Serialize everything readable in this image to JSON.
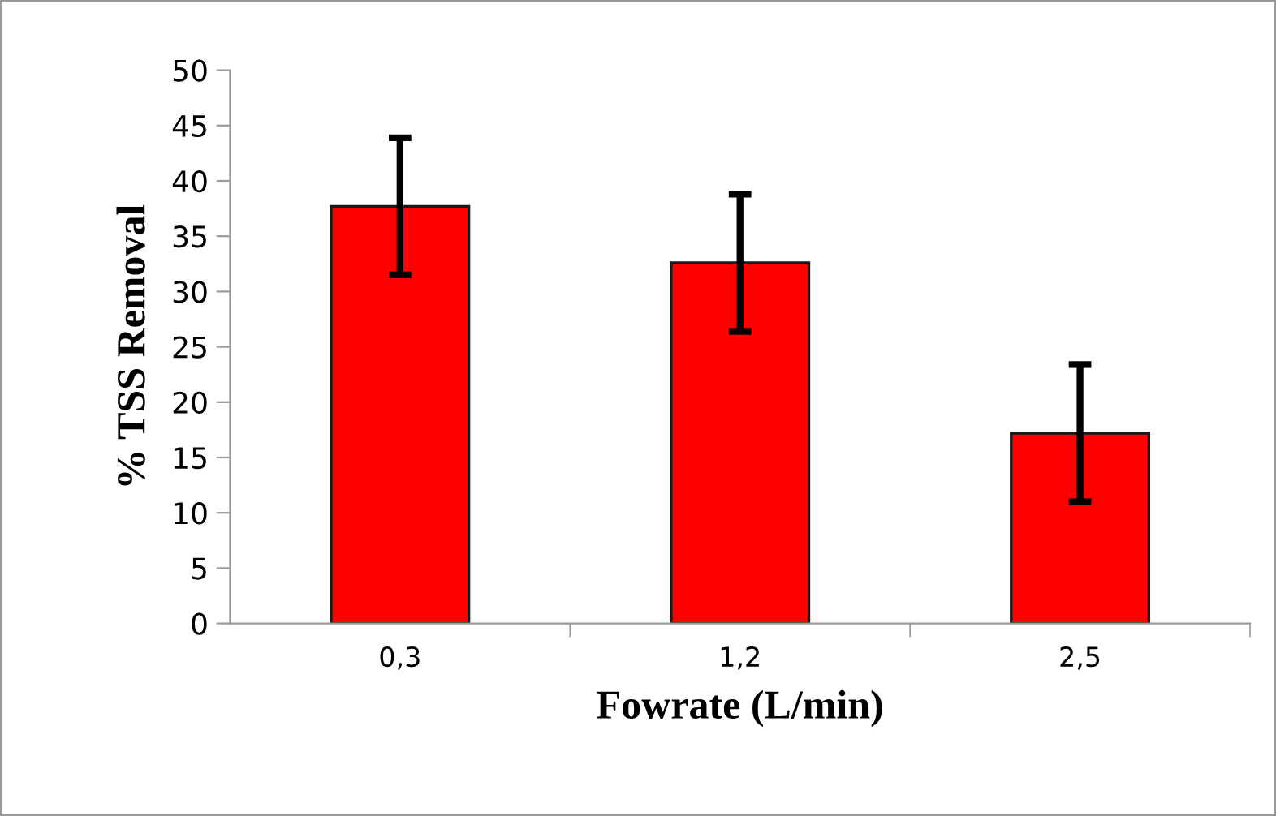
{
  "chart_data": {
    "type": "bar",
    "xlabel": "Fowrate (L/min)",
    "ylabel": "% TSS Removal",
    "categories": [
      "0,3",
      "1,2",
      "2,5"
    ],
    "values": [
      37.7,
      32.6,
      17.2
    ],
    "errors": [
      6.2,
      6.2,
      6.2
    ],
    "color": "#ff0000",
    "ylim": [
      0,
      50
    ],
    "yticks": [
      0,
      5,
      10,
      15,
      20,
      25,
      30,
      35,
      40,
      45,
      50
    ],
    "grid": false,
    "legend": false
  }
}
